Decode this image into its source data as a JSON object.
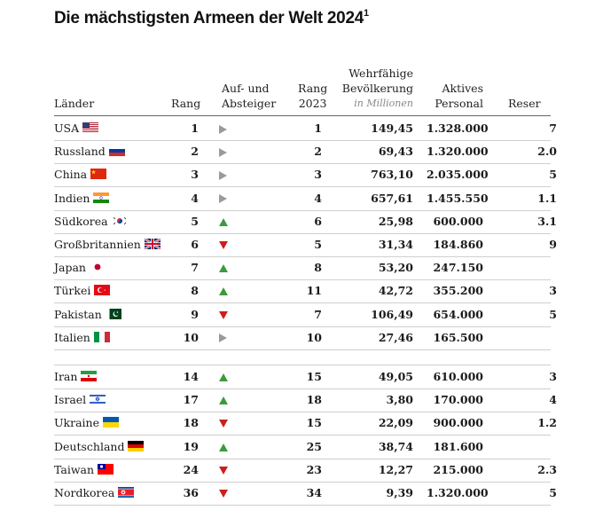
{
  "title": "Die mächstigsten Armeen der Welt 2024",
  "title_footnote": "1",
  "headers": {
    "country": "Länder",
    "rank": "Rang",
    "trend_line1": "Auf- und",
    "trend_line2": "Absteiger",
    "rank2023_line1": "Rang",
    "rank2023_line2": "2023",
    "pop_line1": "Wehrfähige",
    "pop_line2": "Bevölkerung",
    "pop_unit": "in Millionen",
    "active_line1": "Aktives",
    "active_line2": "Personal",
    "reserve": "Reser"
  },
  "colors": {
    "up": "#3b9b3b",
    "down": "#cc1f1f",
    "same": "#9a9a9a"
  },
  "rows": [
    {
      "country": "USA",
      "flag": "usa-flag",
      "rank": "1",
      "trend": "same",
      "rank2023": "1",
      "pop": "149,45",
      "active": "1.328.000",
      "reserve": "7"
    },
    {
      "country": "Russland",
      "flag": "russia-flag",
      "rank": "2",
      "trend": "same",
      "rank2023": "2",
      "pop": "69,43",
      "active": "1.320.000",
      "reserve": "2.0"
    },
    {
      "country": "China",
      "flag": "china-flag",
      "rank": "3",
      "trend": "same",
      "rank2023": "3",
      "pop": "763,10",
      "active": "2.035.000",
      "reserve": "5"
    },
    {
      "country": "Indien",
      "flag": "india-flag",
      "rank": "4",
      "trend": "same",
      "rank2023": "4",
      "pop": "657,61",
      "active": "1.455.550",
      "reserve": "1.1"
    },
    {
      "country": "Südkorea",
      "flag": "south-korea-flag",
      "rank": "5",
      "trend": "up",
      "rank2023": "6",
      "pop": "25,98",
      "active": "600.000",
      "reserve": "3.1"
    },
    {
      "country": "Großbritannien",
      "flag": "uk-flag",
      "rank": "6",
      "trend": "down",
      "rank2023": "5",
      "pop": "31,34",
      "active": "184.860",
      "reserve": "9"
    },
    {
      "country": "Japan",
      "flag": "japan-flag",
      "rank": "7",
      "trend": "up",
      "rank2023": "8",
      "pop": "53,20",
      "active": "247.150",
      "reserve": ""
    },
    {
      "country": "Türkei",
      "flag": "turkey-flag",
      "rank": "8",
      "trend": "up",
      "rank2023": "11",
      "pop": "42,72",
      "active": "355.200",
      "reserve": "3"
    },
    {
      "country": "Pakistan",
      "flag": "pakistan-flag",
      "rank": "9",
      "trend": "down",
      "rank2023": "7",
      "pop": "106,49",
      "active": "654.000",
      "reserve": "5"
    },
    {
      "country": "Italien",
      "flag": "italy-flag",
      "rank": "10",
      "trend": "same",
      "rank2023": "10",
      "pop": "27,46",
      "active": "165.500",
      "reserve": ""
    },
    {
      "country": "Iran",
      "flag": "iran-flag",
      "rank": "14",
      "trend": "up",
      "rank2023": "15",
      "pop": "49,05",
      "active": "610.000",
      "reserve": "3"
    },
    {
      "country": "Israel",
      "flag": "israel-flag",
      "rank": "17",
      "trend": "up",
      "rank2023": "18",
      "pop": "3,80",
      "active": "170.000",
      "reserve": "4"
    },
    {
      "country": "Ukraine",
      "flag": "ukraine-flag",
      "rank": "18",
      "trend": "down",
      "rank2023": "15",
      "pop": "22,09",
      "active": "900.000",
      "reserve": "1.2"
    },
    {
      "country": "Deutschland",
      "flag": "germany-flag",
      "rank": "19",
      "trend": "up",
      "rank2023": "25",
      "pop": "38,74",
      "active": "181.600",
      "reserve": ""
    },
    {
      "country": "Taiwan",
      "flag": "taiwan-flag",
      "rank": "24",
      "trend": "down",
      "rank2023": "23",
      "pop": "12,27",
      "active": "215.000",
      "reserve": "2.3"
    },
    {
      "country": "Nordkorea",
      "flag": "north-korea-flag",
      "rank": "36",
      "trend": "down",
      "rank2023": "34",
      "pop": "9,39",
      "active": "1.320.000",
      "reserve": "5"
    }
  ]
}
